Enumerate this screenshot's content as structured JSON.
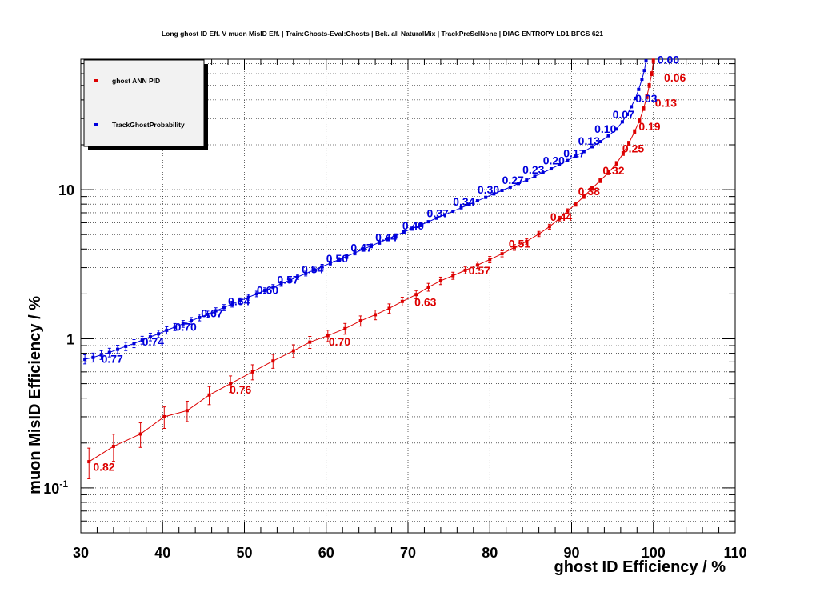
{
  "chart_data": {
    "type": "line",
    "title": "Long ghost ID Eff. V muon MisID Eff. | Train:Ghosts-Eval:Ghosts | Bck. all NaturalMix | TrackPreSelNone | DIAG ENTROPY LD1 BFGS 621",
    "xlabel": "ghost ID Efficiency / %",
    "ylabel": "muon MisID Efficiency / %",
    "xlim": [
      30,
      110
    ],
    "ylim": [
      0.05,
      75
    ],
    "yscale": "log",
    "grid": true,
    "legend_position": "top-left",
    "x_ticks": [
      "30",
      "40",
      "50",
      "60",
      "70",
      "80",
      "90",
      "100",
      "110"
    ],
    "y_ticks": [
      {
        "label": "10",
        "value": 10
      },
      {
        "label": "1",
        "value": 1
      },
      {
        "label": "10",
        "sup": "-1",
        "value": 0.1
      }
    ],
    "series": [
      {
        "name": "ghost ANN PID",
        "color": "#dd0000",
        "points": [
          [
            31,
            0.15
          ],
          [
            34,
            0.19
          ],
          [
            37.3,
            0.23
          ],
          [
            40.2,
            0.3
          ],
          [
            43,
            0.33
          ],
          [
            45.7,
            0.42
          ],
          [
            48.3,
            0.5
          ],
          [
            51,
            0.6
          ],
          [
            53.5,
            0.71
          ],
          [
            56,
            0.83
          ],
          [
            58,
            0.95
          ],
          [
            60.2,
            1.05
          ],
          [
            62.3,
            1.17
          ],
          [
            64.2,
            1.32
          ],
          [
            66,
            1.45
          ],
          [
            67.7,
            1.6
          ],
          [
            69.3,
            1.78
          ],
          [
            71,
            1.98
          ],
          [
            72.5,
            2.22
          ],
          [
            74,
            2.45
          ],
          [
            75.5,
            2.65
          ],
          [
            77,
            2.88
          ],
          [
            78.5,
            3.12
          ],
          [
            80,
            3.4
          ],
          [
            81.5,
            3.72
          ],
          [
            83,
            4.1
          ],
          [
            84.5,
            4.5
          ],
          [
            86,
            5.05
          ],
          [
            87.3,
            5.65
          ],
          [
            88.5,
            6.4
          ],
          [
            89.5,
            7.2
          ],
          [
            90.5,
            8.0
          ],
          [
            91.5,
            9.0
          ],
          [
            92.5,
            10.2
          ],
          [
            93.5,
            11.5
          ],
          [
            94.5,
            13.0
          ],
          [
            95.5,
            15.0
          ],
          [
            96.3,
            17.5
          ],
          [
            97,
            20.5
          ],
          [
            97.7,
            24.5
          ],
          [
            98.3,
            29
          ],
          [
            98.8,
            35
          ],
          [
            99.2,
            42
          ],
          [
            99.5,
            50
          ],
          [
            99.8,
            60
          ],
          [
            100,
            73
          ]
        ],
        "labels": [
          {
            "x": 31.5,
            "y": 0.13,
            "text": "0.82"
          },
          {
            "x": 48.2,
            "y": 0.43,
            "text": "0.76"
          },
          {
            "x": 60.3,
            "y": 0.9,
            "text": "0.70"
          },
          {
            "x": 70.8,
            "y": 1.66,
            "text": "0.63"
          },
          {
            "x": 77.4,
            "y": 2.7,
            "text": "0.57"
          },
          {
            "x": 82.3,
            "y": 4.1,
            "text": "0.51"
          },
          {
            "x": 87.4,
            "y": 6.2,
            "text": "0.44"
          },
          {
            "x": 90.8,
            "y": 9.2,
            "text": "0.38"
          },
          {
            "x": 93.8,
            "y": 12.7,
            "text": "0.32"
          },
          {
            "x": 96.2,
            "y": 17.8,
            "text": "0.25"
          },
          {
            "x": 98.2,
            "y": 25.0,
            "text": "0.19"
          },
          {
            "x": 100.2,
            "y": 36.0,
            "text": "0.13"
          },
          {
            "x": 101.3,
            "y": 53.0,
            "text": "0.06"
          }
        ]
      },
      {
        "name": "TrackGhostProbability",
        "color": "#0000dd",
        "points": [
          [
            30.5,
            0.73
          ],
          [
            31.5,
            0.75
          ],
          [
            32.5,
            0.78
          ],
          [
            33.5,
            0.81
          ],
          [
            34.5,
            0.85
          ],
          [
            35.5,
            0.89
          ],
          [
            36.5,
            0.93
          ],
          [
            37.5,
            0.98
          ],
          [
            38.5,
            1.03
          ],
          [
            39.5,
            1.08
          ],
          [
            40.5,
            1.14
          ],
          [
            41.5,
            1.2
          ],
          [
            42.5,
            1.26
          ],
          [
            43.5,
            1.32
          ],
          [
            44.5,
            1.39
          ],
          [
            45.5,
            1.46
          ],
          [
            46.5,
            1.54
          ],
          [
            47.5,
            1.62
          ],
          [
            48.5,
            1.71
          ],
          [
            49.5,
            1.8
          ],
          [
            50.5,
            1.9
          ],
          [
            51.5,
            2.0
          ],
          [
            52.5,
            2.11
          ],
          [
            53.5,
            2.22
          ],
          [
            54.5,
            2.34
          ],
          [
            55.5,
            2.47
          ],
          [
            56.5,
            2.6
          ],
          [
            57.5,
            2.74
          ],
          [
            58.5,
            2.89
          ],
          [
            59.5,
            3.05
          ],
          [
            60.5,
            3.21
          ],
          [
            61.5,
            3.39
          ],
          [
            62.5,
            3.57
          ],
          [
            63.5,
            3.77
          ],
          [
            64.5,
            3.98
          ],
          [
            65.5,
            4.2
          ],
          [
            66.5,
            4.43
          ],
          [
            67.5,
            4.67
          ],
          [
            68.5,
            4.93
          ],
          [
            69.5,
            5.2
          ],
          [
            70.5,
            5.48
          ],
          [
            71.5,
            5.78
          ],
          [
            72.5,
            6.1
          ],
          [
            73.5,
            6.44
          ],
          [
            74.5,
            6.79
          ],
          [
            75.5,
            7.17
          ],
          [
            76.5,
            7.56
          ],
          [
            77.5,
            7.98
          ],
          [
            78.5,
            8.42
          ],
          [
            79.5,
            8.88
          ],
          [
            80.5,
            9.37
          ],
          [
            81.5,
            9.89
          ],
          [
            82.5,
            10.4
          ],
          [
            83.5,
            11.0
          ],
          [
            84.5,
            11.6
          ],
          [
            85.5,
            12.3
          ],
          [
            86.5,
            13.0
          ],
          [
            87.5,
            13.8
          ],
          [
            88.5,
            14.7
          ],
          [
            89.5,
            15.7
          ],
          [
            90.5,
            16.8
          ],
          [
            91.5,
            18.0
          ],
          [
            92.5,
            19.4
          ],
          [
            93.5,
            21.0
          ],
          [
            94.5,
            23.0
          ],
          [
            95.5,
            25.5
          ],
          [
            96.2,
            28.5
          ],
          [
            96.8,
            32
          ],
          [
            97.3,
            36
          ],
          [
            97.8,
            41
          ],
          [
            98.2,
            47
          ],
          [
            98.6,
            55
          ],
          [
            98.9,
            63
          ],
          [
            99.1,
            73
          ]
        ],
        "labels": [
          {
            "x": 32.5,
            "y": 0.69,
            "text": "0.77"
          },
          {
            "x": 37.5,
            "y": 0.9,
            "text": "0.74"
          },
          {
            "x": 41.5,
            "y": 1.13,
            "text": "0.70"
          },
          {
            "x": 44.7,
            "y": 1.4,
            "text": "0.67"
          },
          {
            "x": 48.0,
            "y": 1.68,
            "text": "0.64"
          },
          {
            "x": 51.5,
            "y": 2.0,
            "text": "0.60"
          },
          {
            "x": 54.0,
            "y": 2.35,
            "text": "0.57"
          },
          {
            "x": 57.0,
            "y": 2.75,
            "text": "0.54"
          },
          {
            "x": 60.0,
            "y": 3.25,
            "text": "0.50"
          },
          {
            "x": 63.0,
            "y": 3.85,
            "text": "0.47"
          },
          {
            "x": 66.0,
            "y": 4.5,
            "text": "0.44"
          },
          {
            "x": 69.3,
            "y": 5.4,
            "text": "0.40"
          },
          {
            "x": 72.3,
            "y": 6.55,
            "text": "0.37"
          },
          {
            "x": 75.5,
            "y": 7.8,
            "text": "0.34"
          },
          {
            "x": 78.5,
            "y": 9.4,
            "text": "0.30"
          },
          {
            "x": 81.5,
            "y": 10.9,
            "text": "0.27"
          },
          {
            "x": 84.0,
            "y": 12.8,
            "text": "0.23"
          },
          {
            "x": 86.5,
            "y": 14.8,
            "text": "0.20"
          },
          {
            "x": 89.0,
            "y": 16.5,
            "text": "0.17"
          },
          {
            "x": 90.8,
            "y": 20.0,
            "text": "0.13"
          },
          {
            "x": 92.8,
            "y": 24.0,
            "text": "0.10"
          },
          {
            "x": 95.0,
            "y": 30.0,
            "text": "0.07"
          },
          {
            "x": 97.8,
            "y": 38.5,
            "text": "0.03"
          },
          {
            "x": 100.5,
            "y": 70.0,
            "text": "0.00"
          }
        ]
      }
    ]
  }
}
